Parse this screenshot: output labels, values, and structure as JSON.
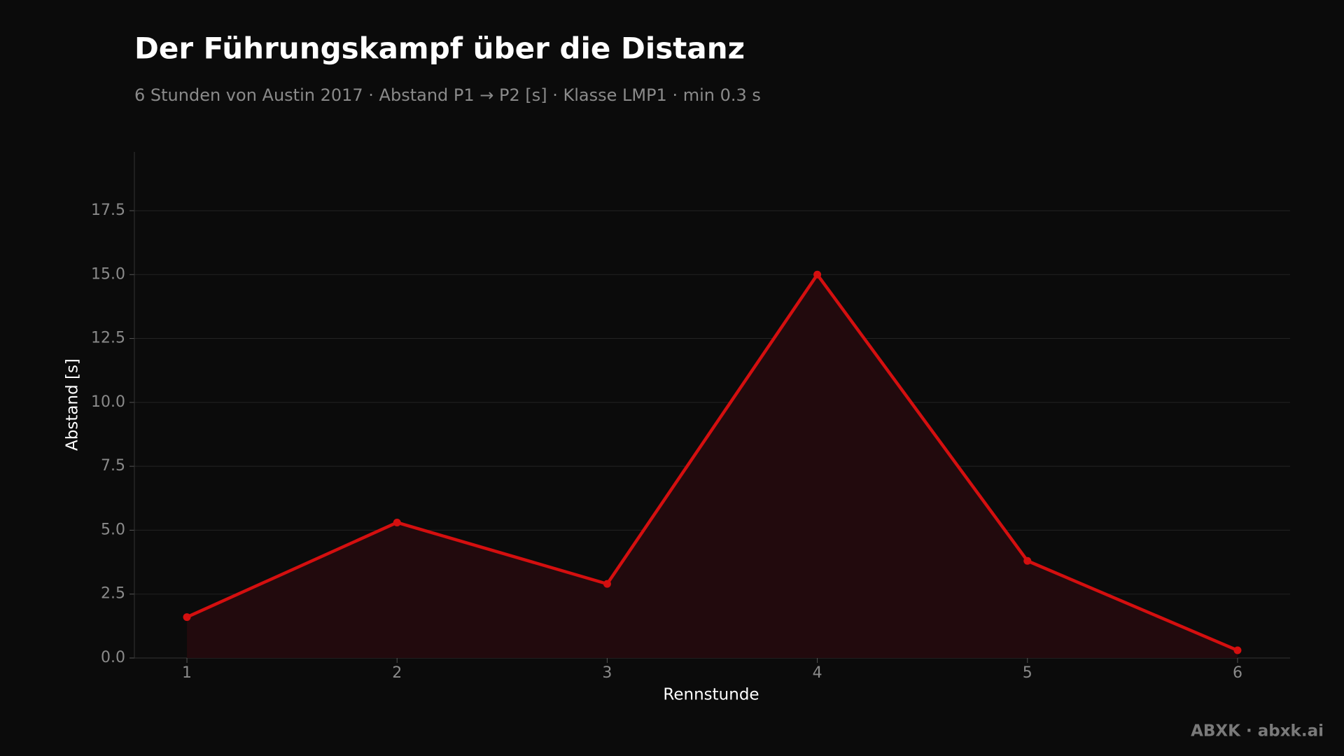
{
  "chart_data": {
    "type": "line",
    "title": "Der Führungskampf über die Distanz",
    "subtitle": "6 Stunden von Austin 2017 · Abstand P1 → P2 [s] · Klasse LMP1 · min 0.3 s",
    "x_label": "Rennstunde",
    "y_label": "Abstand [s]",
    "x": [
      1,
      2,
      3,
      4,
      5,
      6
    ],
    "series": [
      {
        "name": "Abstand P1 → P2",
        "color": "#d40f0f",
        "values": [
          1.6,
          5.3,
          2.9,
          15.0,
          3.8,
          0.3
        ]
      }
    ],
    "area_fill": "#220a0d",
    "xlim": [
      0.75,
      6.25
    ],
    "xticks": [
      1,
      2,
      3,
      4,
      5,
      6
    ],
    "ylim": [
      0,
      19.8
    ],
    "yticks": [
      {
        "value": 0,
        "label": "0.0"
      },
      {
        "value": 2.5,
        "label": "2.5"
      },
      {
        "value": 5,
        "label": "5.0"
      },
      {
        "value": 7.5,
        "label": "7.5"
      },
      {
        "value": 10,
        "label": "10.0"
      },
      {
        "value": 12.5,
        "label": "12.5"
      },
      {
        "value": 15,
        "label": "15.0"
      },
      {
        "value": 17.5,
        "label": "17.5"
      }
    ],
    "grid": true,
    "footer": "ABXK · abxk.ai"
  }
}
